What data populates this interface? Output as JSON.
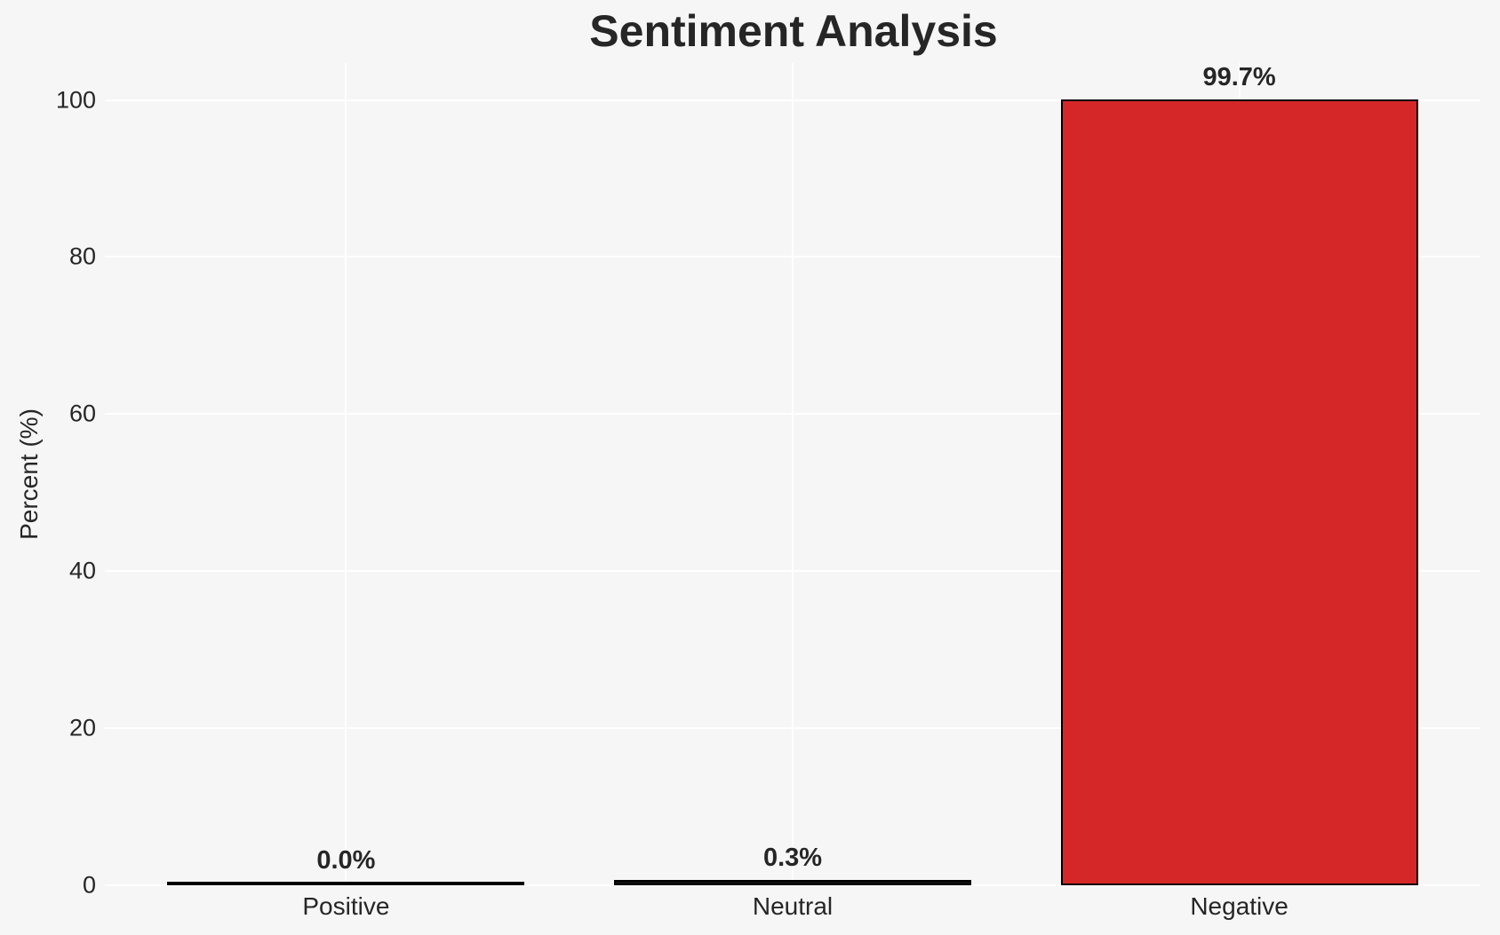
{
  "chart_data": {
    "type": "bar",
    "title": "Sentiment Analysis",
    "ylabel": "Percent (%)",
    "xlabel": "",
    "categories": [
      "Positive",
      "Neutral",
      "Negative"
    ],
    "values": [
      0.0,
      0.3,
      99.7
    ],
    "value_labels": [
      "0.0%",
      "0.3%",
      "99.7%"
    ],
    "bar_colors": [
      "#111111",
      "#111111",
      "#d62728"
    ],
    "bar_edge_color": "#000000",
    "yticks": [
      0,
      20,
      40,
      60,
      80,
      100
    ],
    "ytick_labels": [
      "0",
      "20",
      "40",
      "60",
      "80",
      "100"
    ],
    "ylim": [
      0,
      104.7
    ],
    "xlim": [
      -0.54,
      2.54
    ],
    "bar_width": 0.8,
    "grid": "on",
    "legend": "none",
    "background_color": "#f6f6f6",
    "gridline_color": "#ffffff",
    "text_color": "#262626"
  }
}
